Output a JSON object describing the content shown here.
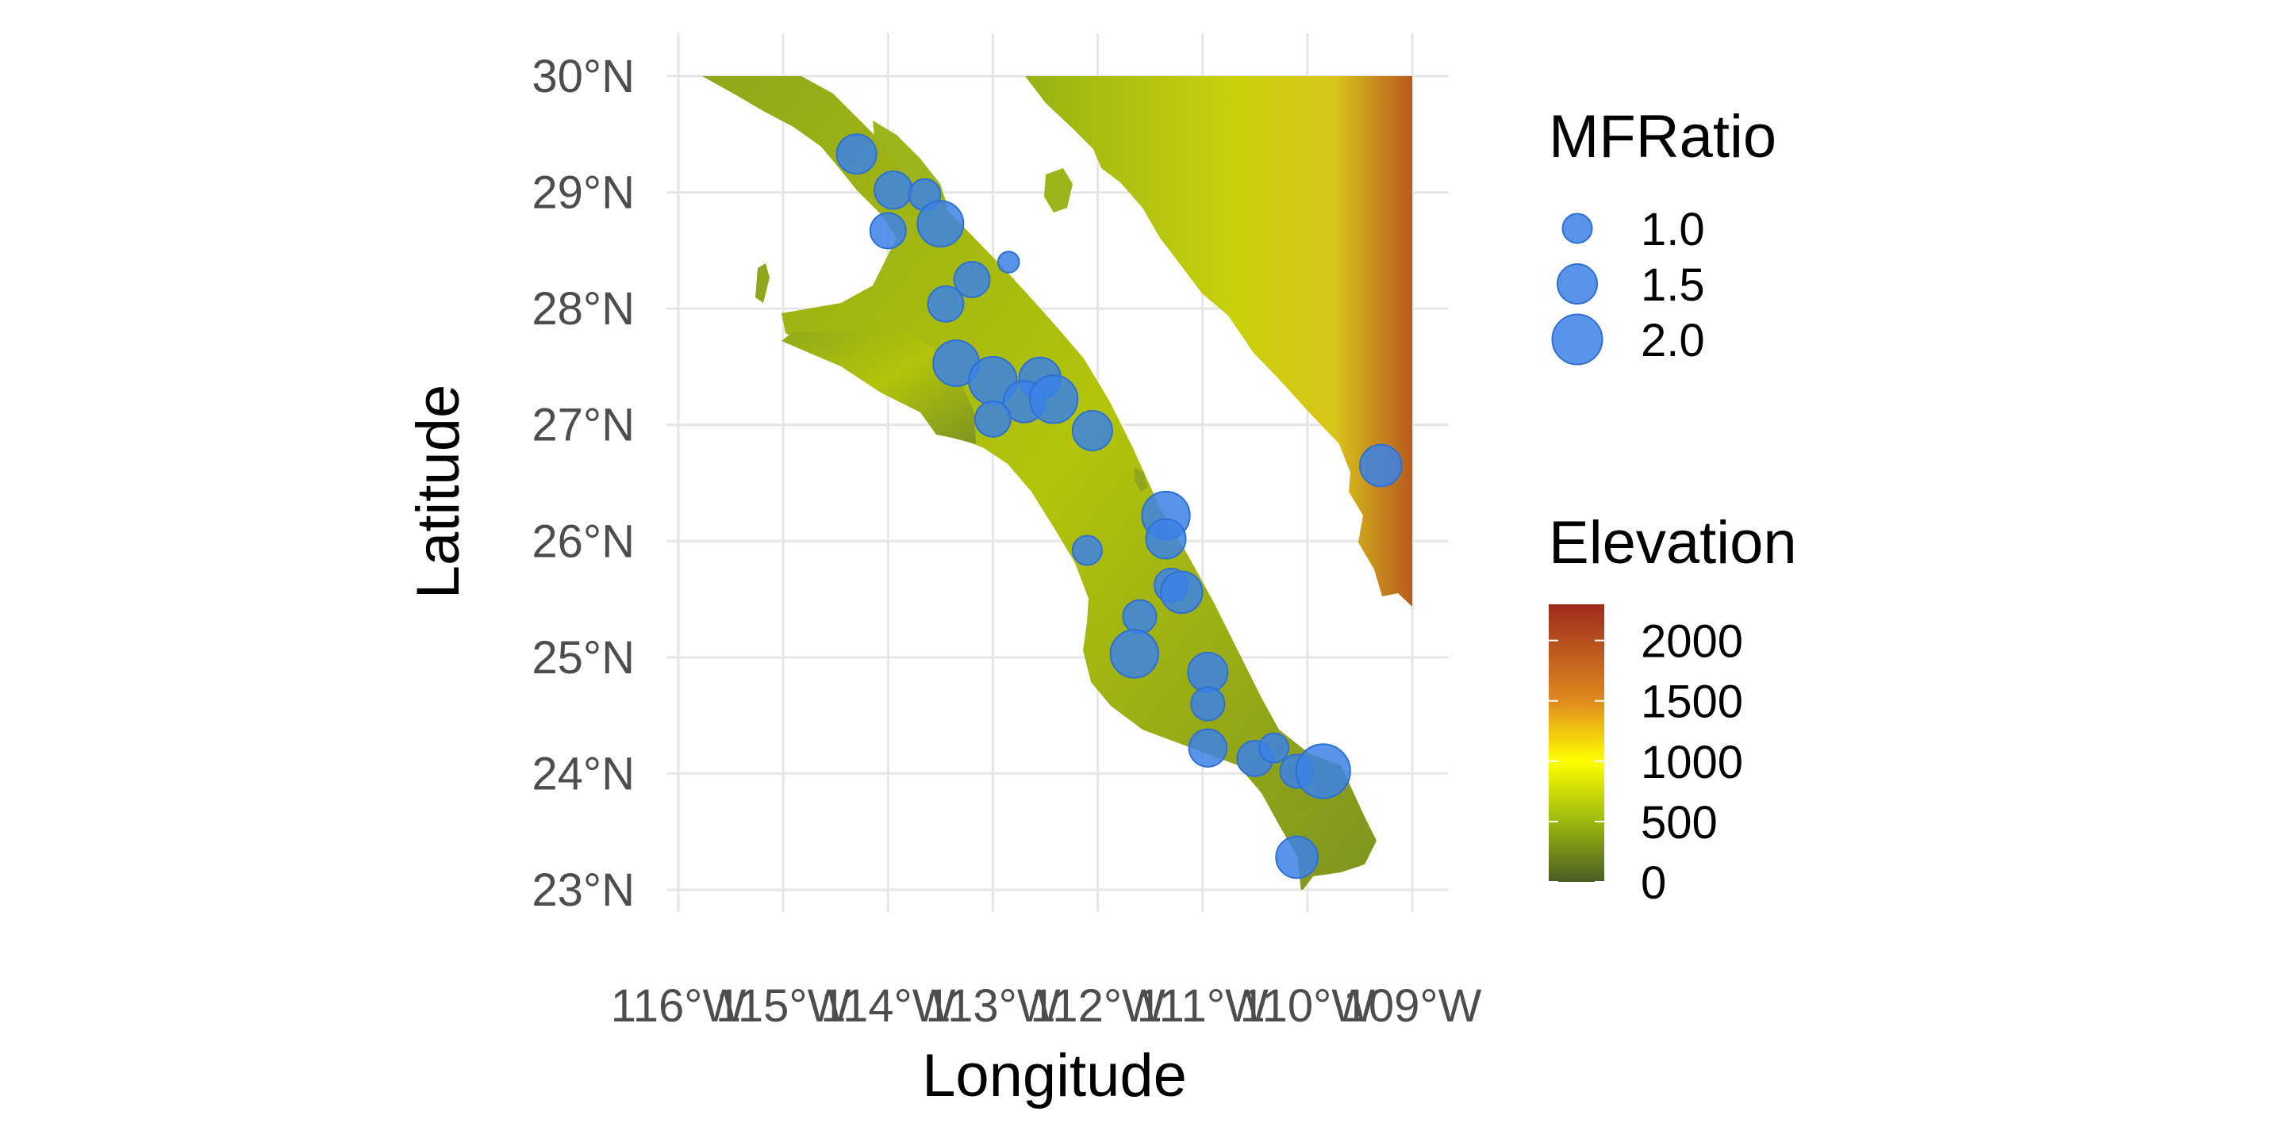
{
  "chart_data": {
    "type": "scatter",
    "xlabel": "Longitude",
    "ylabel": "Latitude",
    "xlim": [
      -116,
      -109
    ],
    "ylim": [
      23,
      30
    ],
    "grid": true,
    "x_ticks": [
      "116°W",
      "115°W",
      "114°W",
      "113°W",
      "112°W",
      "111°W",
      "110°W",
      "109°W"
    ],
    "y_ticks": [
      "23°N",
      "24°N",
      "25°N",
      "26°N",
      "27°N",
      "28°N",
      "29°N",
      "30°N"
    ],
    "point_color": "#3b82e6",
    "size_legend": {
      "title": "MFRatio",
      "entries": [
        {
          "label": "1.0",
          "value": 1.0
        },
        {
          "label": "1.5",
          "value": 1.5
        },
        {
          "label": "2.0",
          "value": 2.0
        }
      ]
    },
    "color_legend": {
      "title": "Elevation",
      "labels": [
        "2000",
        "1500",
        "1000",
        "500",
        "0"
      ],
      "stops": [
        {
          "value": 0,
          "color": "#4a5d23"
        },
        {
          "value": 500,
          "color": "#9bb80e"
        },
        {
          "value": 1000,
          "color": "#ffff00"
        },
        {
          "value": 1500,
          "color": "#e08a1e"
        },
        {
          "value": 2300,
          "color": "#9e2a1c"
        }
      ]
    },
    "points": [
      {
        "lon": -114.3,
        "lat": 29.33,
        "mfratio": 1.5
      },
      {
        "lon": -113.95,
        "lat": 29.02,
        "mfratio": 1.4
      },
      {
        "lon": -113.65,
        "lat": 28.98,
        "mfratio": 1.1
      },
      {
        "lon": -114.0,
        "lat": 28.67,
        "mfratio": 1.3
      },
      {
        "lon": -113.5,
        "lat": 28.73,
        "mfratio": 1.8
      },
      {
        "lon": -113.2,
        "lat": 28.25,
        "mfratio": 1.3
      },
      {
        "lon": -113.45,
        "lat": 28.04,
        "mfratio": 1.3
      },
      {
        "lon": -112.85,
        "lat": 28.4,
        "mfratio": 0.6
      },
      {
        "lon": -113.35,
        "lat": 27.53,
        "mfratio": 1.8
      },
      {
        "lon": -113.0,
        "lat": 27.38,
        "mfratio": 1.9
      },
      {
        "lon": -112.55,
        "lat": 27.4,
        "mfratio": 1.6
      },
      {
        "lon": -112.7,
        "lat": 27.2,
        "mfratio": 1.6
      },
      {
        "lon": -112.42,
        "lat": 27.22,
        "mfratio": 1.9
      },
      {
        "lon": -113.0,
        "lat": 27.05,
        "mfratio": 1.3
      },
      {
        "lon": -112.05,
        "lat": 26.95,
        "mfratio": 1.5
      },
      {
        "lon": -111.35,
        "lat": 26.22,
        "mfratio": 1.9
      },
      {
        "lon": -111.35,
        "lat": 26.02,
        "mfratio": 1.5
      },
      {
        "lon": -112.1,
        "lat": 25.92,
        "mfratio": 1.0
      },
      {
        "lon": -111.3,
        "lat": 25.62,
        "mfratio": 1.2
      },
      {
        "lon": -111.2,
        "lat": 25.56,
        "mfratio": 1.6
      },
      {
        "lon": -111.6,
        "lat": 25.35,
        "mfratio": 1.2
      },
      {
        "lon": -111.65,
        "lat": 25.03,
        "mfratio": 1.9
      },
      {
        "lon": -110.95,
        "lat": 24.87,
        "mfratio": 1.5
      },
      {
        "lon": -110.95,
        "lat": 24.6,
        "mfratio": 1.2
      },
      {
        "lon": -110.95,
        "lat": 24.22,
        "mfratio": 1.4
      },
      {
        "lon": -110.5,
        "lat": 24.13,
        "mfratio": 1.3
      },
      {
        "lon": -110.32,
        "lat": 24.22,
        "mfratio": 1.0
      },
      {
        "lon": -110.1,
        "lat": 24.02,
        "mfratio": 1.2
      },
      {
        "lon": -109.85,
        "lat": 24.02,
        "mfratio": 2.2
      },
      {
        "lon": -110.1,
        "lat": 23.28,
        "mfratio": 1.6
      },
      {
        "lon": -109.3,
        "lat": 26.65,
        "mfratio": 1.6
      }
    ]
  }
}
